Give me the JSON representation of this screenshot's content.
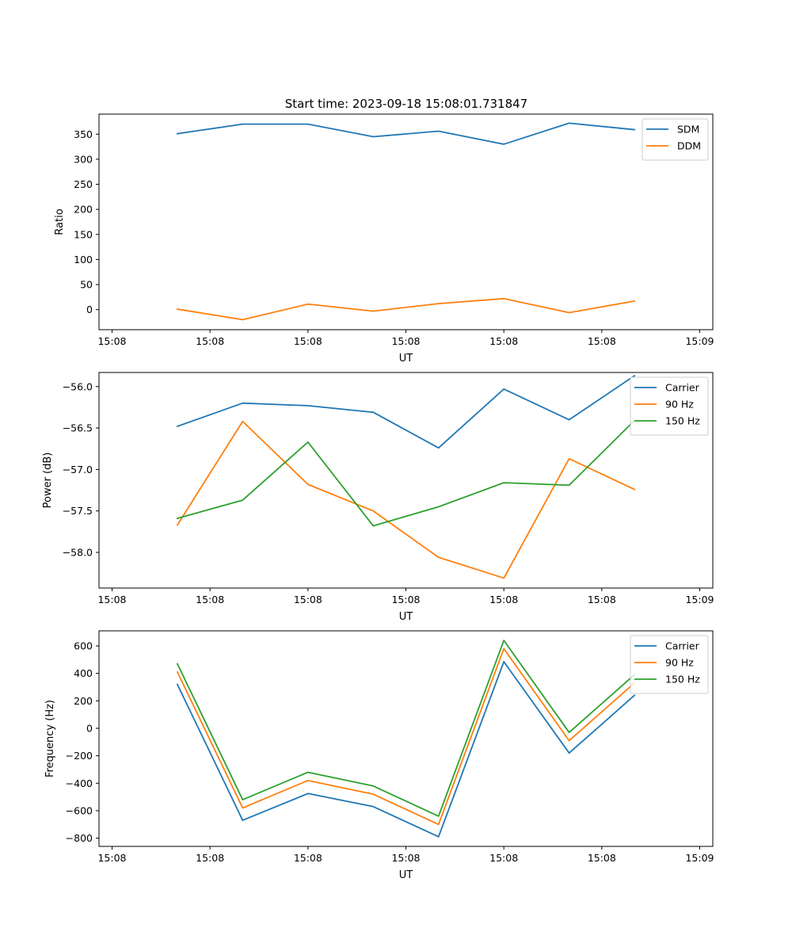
{
  "figure": {
    "title": "Start time: 2023-09-18 15:08:01.731847",
    "sample_times_s": [
      1.0,
      2.0,
      3.0,
      4.0,
      5.0,
      6.0,
      7.0,
      8.0
    ]
  },
  "chart_data": [
    {
      "type": "line",
      "title": "Start time: 2023-09-18 15:08:01.731847",
      "xlabel": "UT",
      "ylabel": "Ratio",
      "xlim": [
        -0.2,
        9.2
      ],
      "ylim": [
        -40,
        390
      ],
      "x": [
        1.0,
        2.0,
        3.0,
        4.0,
        5.0,
        6.0,
        7.0,
        8.0
      ],
      "xticks": [
        0,
        1.5,
        3,
        4.5,
        6,
        7.5,
        9
      ],
      "xtick_labels": [
        "15:08",
        "15:08",
        "15:08",
        "15:08",
        "15:08",
        "15:08",
        "15:09"
      ],
      "yticks": [
        0,
        50,
        100,
        150,
        200,
        250,
        300,
        350
      ],
      "ytick_labels": [
        "0",
        "50",
        "100",
        "150",
        "200",
        "250",
        "300",
        "350"
      ],
      "legend_position": "top-right",
      "series": [
        {
          "name": "SDM",
          "color": "#1f77b4",
          "values": [
            351,
            370,
            370,
            345,
            356,
            330,
            372,
            359
          ]
        },
        {
          "name": "DDM",
          "color": "#ff7f0e",
          "values": [
            1,
            -20,
            11,
            -3,
            12,
            22,
            -6,
            17
          ]
        }
      ]
    },
    {
      "type": "line",
      "title": "",
      "xlabel": "UT",
      "ylabel": "Power (dB)",
      "xlim": [
        -0.2,
        9.2
      ],
      "ylim": [
        -58.43,
        -55.83
      ],
      "x": [
        1.0,
        2.0,
        3.0,
        4.0,
        5.0,
        6.0,
        7.0,
        8.0
      ],
      "xticks": [
        0,
        1.5,
        3,
        4.5,
        6,
        7.5,
        9
      ],
      "xtick_labels": [
        "15:08",
        "15:08",
        "15:08",
        "15:08",
        "15:08",
        "15:08",
        "15:09"
      ],
      "yticks": [
        -58.0,
        -57.5,
        -57.0,
        -56.5,
        -56.0
      ],
      "ytick_labels": [
        "−58.0",
        "−57.5",
        "−57.0",
        "−56.5",
        "−56.0"
      ],
      "legend_position": "top-right",
      "series": [
        {
          "name": "Carrier",
          "color": "#1f77b4",
          "values": [
            -56.48,
            -56.2,
            -56.23,
            -56.31,
            -56.74,
            -56.03,
            -56.4,
            -55.87
          ]
        },
        {
          "name": "90 Hz",
          "color": "#ff7f0e",
          "values": [
            -57.67,
            -56.42,
            -57.18,
            -57.5,
            -58.06,
            -58.31,
            -56.87,
            -57.24
          ]
        },
        {
          "name": "150 Hz",
          "color": "#2ca02c",
          "values": [
            -57.59,
            -57.37,
            -56.67,
            -57.68,
            -57.45,
            -57.16,
            -57.19,
            -56.41
          ]
        }
      ]
    },
    {
      "type": "line",
      "title": "",
      "xlabel": "UT",
      "ylabel": "Frequency (Hz)",
      "xlim": [
        -0.2,
        9.2
      ],
      "ylim": [
        -860,
        710
      ],
      "x": [
        1.0,
        2.0,
        3.0,
        4.0,
        5.0,
        6.0,
        7.0,
        8.0
      ],
      "xticks": [
        0,
        1.5,
        3,
        4.5,
        6,
        7.5,
        9
      ],
      "xtick_labels": [
        "15:08",
        "15:08",
        "15:08",
        "15:08",
        "15:08",
        "15:08",
        "15:09"
      ],
      "yticks": [
        -800,
        -600,
        -400,
        -200,
        0,
        200,
        400,
        600
      ],
      "ytick_labels": [
        "−800",
        "−600",
        "−400",
        "−200",
        "0",
        "200",
        "400",
        "600"
      ],
      "legend_position": "top-right",
      "series": [
        {
          "name": "Carrier",
          "color": "#1f77b4",
          "values": [
            320,
            -670,
            -475,
            -570,
            -790,
            485,
            -180,
            240
          ]
        },
        {
          "name": "90 Hz",
          "color": "#ff7f0e",
          "values": [
            410,
            -580,
            -380,
            -480,
            -700,
            580,
            -90,
            330
          ]
        },
        {
          "name": "150 Hz",
          "color": "#2ca02c",
          "values": [
            470,
            -520,
            -320,
            -420,
            -640,
            640,
            -30,
            390
          ]
        }
      ]
    }
  ]
}
